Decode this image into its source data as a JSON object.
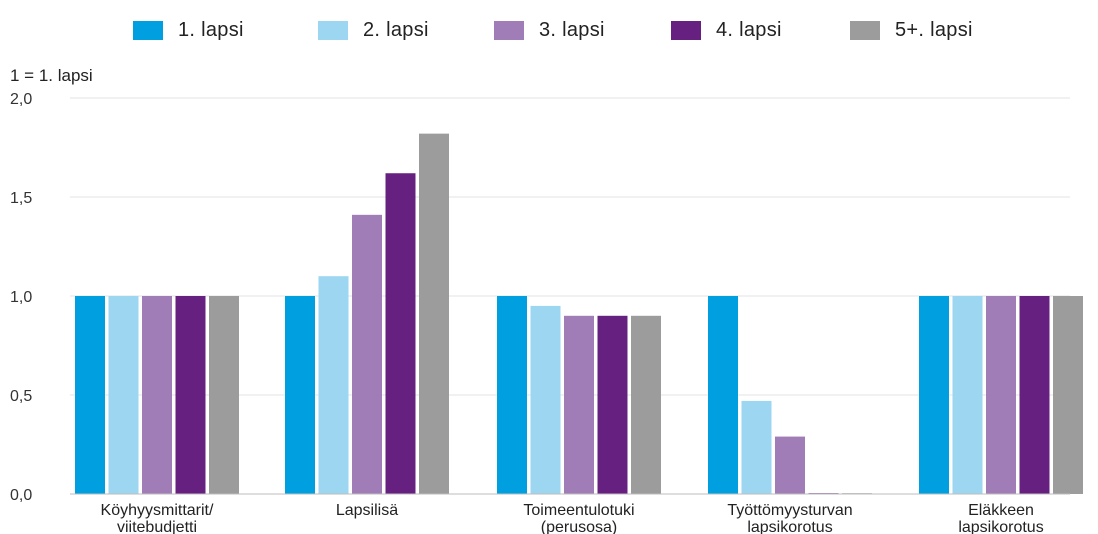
{
  "chart_data": {
    "type": "bar",
    "unit_label": "1 = 1. lapsi",
    "categories": [
      [
        "Köyhyysmittarit/",
        "viitebudjetti"
      ],
      [
        "Lapsilisä"
      ],
      [
        "Toimeentulotuki",
        "(perusosa)"
      ],
      [
        "Työttömyysturvan",
        "lapsikorotus"
      ],
      [
        "Eläkkeen",
        "lapsikorotus"
      ]
    ],
    "series": [
      {
        "name": "1. lapsi",
        "color": "#009fdf",
        "values": [
          1.0,
          1.0,
          1.0,
          1.0,
          1.0
        ]
      },
      {
        "name": "2. lapsi",
        "color": "#9dd6f0",
        "values": [
          1.0,
          1.1,
          0.95,
          0.47,
          1.0
        ]
      },
      {
        "name": "3. lapsi",
        "color": "#a17db7",
        "values": [
          1.0,
          1.41,
          0.9,
          0.29,
          1.0
        ]
      },
      {
        "name": "4. lapsi",
        "color": "#66207f",
        "values": [
          1.0,
          1.62,
          0.9,
          0.0,
          1.0
        ]
      },
      {
        "name": "5+. lapsi",
        "color": "#9c9c9c",
        "values": [
          1.0,
          1.82,
          0.9,
          0.0,
          1.0
        ]
      }
    ],
    "yticks": [
      "0,0",
      "0,5",
      "1,0",
      "1,5",
      "2,0"
    ],
    "ytick_values": [
      0,
      0.5,
      1.0,
      1.5,
      2.0
    ],
    "ylim": [
      0,
      2.0
    ],
    "grid": true,
    "legend_position": "top"
  }
}
